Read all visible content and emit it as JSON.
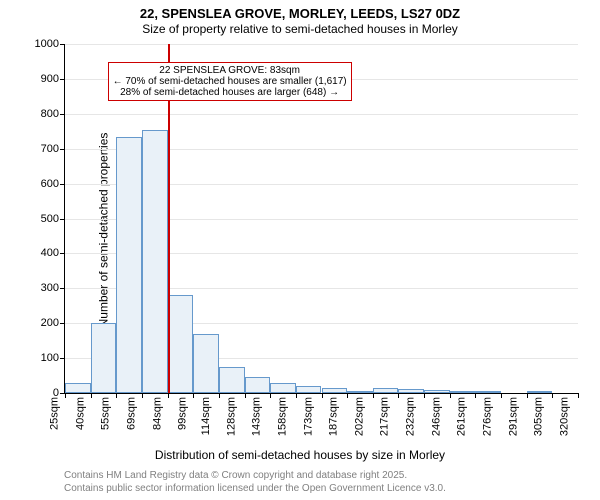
{
  "title_line1": "22, SPENSLEA GROVE, MORLEY, LEEDS, LS27 0DZ",
  "title_line2": "Size of property relative to semi-detached houses in Morley",
  "y_axis_label": "Number of semi-detached properties",
  "x_axis_label": "Distribution of semi-detached houses by size in Morley",
  "caption_line1": "Contains HM Land Registry data © Crown copyright and database right 2025.",
  "caption_line2": "Contains public sector information licensed under the Open Government Licence v3.0.",
  "chart": {
    "type": "histogram",
    "ylim": [
      0,
      1000
    ],
    "ytick_step": 100,
    "yticks": [
      0,
      100,
      200,
      300,
      400,
      500,
      600,
      700,
      800,
      900,
      1000
    ],
    "xtick_labels": [
      "25sqm",
      "40sqm",
      "55sqm",
      "69sqm",
      "84sqm",
      "99sqm",
      "114sqm",
      "128sqm",
      "143sqm",
      "158sqm",
      "173sqm",
      "187sqm",
      "202sqm",
      "217sqm",
      "232sqm",
      "246sqm",
      "261sqm",
      "276sqm",
      "291sqm",
      "305sqm",
      "320sqm"
    ],
    "bar_values": [
      30,
      200,
      735,
      755,
      280,
      170,
      75,
      45,
      30,
      20,
      15,
      5,
      15,
      12,
      10,
      5,
      3,
      0,
      2,
      0
    ],
    "bar_fill_color": "#e9f1f8",
    "bar_border_color": "#6699cc",
    "grid_color": "#e6e6e6",
    "axis_color": "#000000",
    "background_color": "#ffffff",
    "marker_line": {
      "position_index": 4,
      "color": "#cc0000",
      "width": 2
    },
    "annotation": {
      "line1": "22 SPENSLEA GROVE: 83sqm",
      "line2": "← 70% of semi-detached houses are smaller (1,617)",
      "line3": "28% of semi-detached houses are larger (648) →",
      "border_color": "#cc0000",
      "background_color": "#ffffff"
    }
  }
}
